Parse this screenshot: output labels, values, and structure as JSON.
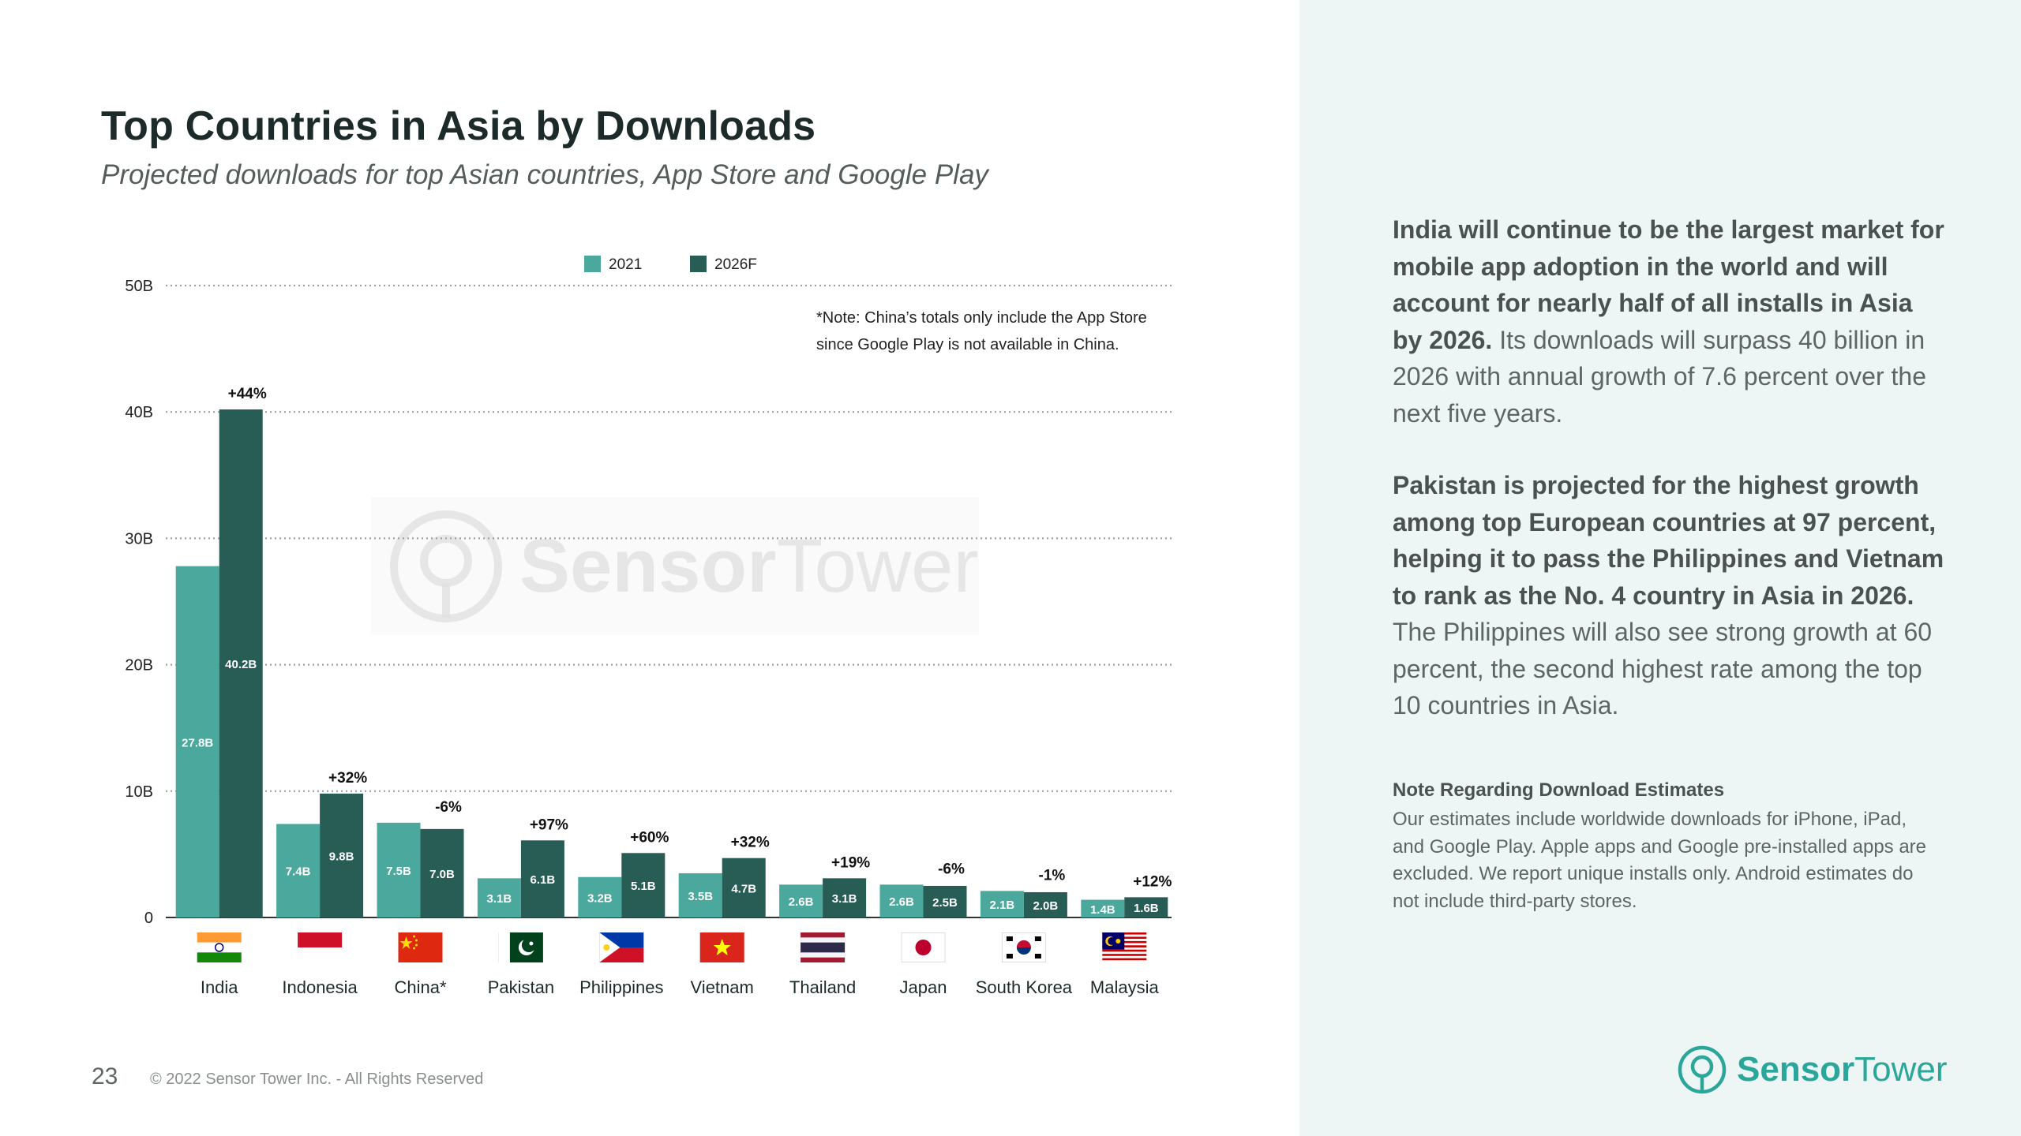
{
  "slide": {
    "title": "Top Countries in Asia by Downloads",
    "subtitle": "Projected downloads for top Asian countries, App Store and Google Play",
    "note": "*Note: China’s totals only include the App Store since Google Play is not available in China.",
    "watermark": {
      "bold": "Sensor",
      "light": "Tower"
    },
    "page_number": "23",
    "copyright": "© 2022 Sensor Tower Inc. - All Rights Reserved",
    "logo": {
      "bold": "Sensor",
      "light": "Tower"
    }
  },
  "sidebar": {
    "p1_bold": "India will continue to be the largest market for mobile app adoption in the world and will account for nearly half of all installs in Asia by 2026.",
    "p1_rest": " Its downloads will surpass 40 billion in 2026 with annual growth of 7.6 percent over the next five years.",
    "p2_bold": "Pakistan is projected for the highest growth among top European countries at 97 percent, helping it to pass the Philippines and Vietnam to rank as the No. 4 country in Asia in 2026.",
    "p2_rest": " The Philippines will also see strong growth at 60 percent, the second highest rate among the top 10 countries in Asia.",
    "estimates_title": "Note Regarding Download Estimates",
    "estimates_body": "Our estimates include worldwide downloads for iPhone, iPad, and Google Play. Apple apps and Google pre-installed apps are excluded. We report unique installs only. Android estimates do not include third-party stores."
  },
  "chart_data": {
    "type": "bar",
    "title": "Top Countries in Asia by Downloads",
    "categories": [
      "India",
      "Indonesia",
      "China*",
      "Pakistan",
      "Philippines",
      "Vietnam",
      "Thailand",
      "Japan",
      "South Korea",
      "Malaysia"
    ],
    "series": [
      {
        "name": "2021",
        "color": "#4aa89c",
        "values": [
          27.8,
          7.4,
          7.5,
          3.1,
          3.2,
          3.5,
          2.6,
          2.6,
          2.1,
          1.4
        ],
        "labels": [
          "27.8B",
          "7.4B",
          "7.5B",
          "3.1B",
          "3.2B",
          "3.5B",
          "2.6B",
          "2.6B",
          "2.1B",
          "1.4B"
        ]
      },
      {
        "name": "2026F",
        "color": "#275d55",
        "values": [
          40.2,
          9.8,
          7.0,
          6.1,
          5.1,
          4.7,
          3.1,
          2.5,
          2.0,
          1.6
        ],
        "labels": [
          "40.2B",
          "9.8B",
          "7.0B",
          "6.1B",
          "5.1B",
          "4.7B",
          "3.1B",
          "2.5B",
          "2.0B",
          "1.6B"
        ]
      }
    ],
    "growth": [
      "+44%",
      "+32%",
      "-6%",
      "+97%",
      "+60%",
      "+32%",
      "+19%",
      "-6%",
      "-1%",
      "+12%"
    ],
    "flags": [
      "india",
      "indonesia",
      "china",
      "pakistan",
      "philippines",
      "vietnam",
      "thailand",
      "japan",
      "south-korea",
      "malaysia"
    ],
    "yticks": [
      0,
      10,
      20,
      30,
      40,
      50
    ],
    "ytick_labels": [
      "0",
      "10B",
      "20B",
      "30B",
      "40B",
      "50B"
    ],
    "ylim": [
      0,
      50
    ],
    "grid": true,
    "legend": "top-center"
  }
}
